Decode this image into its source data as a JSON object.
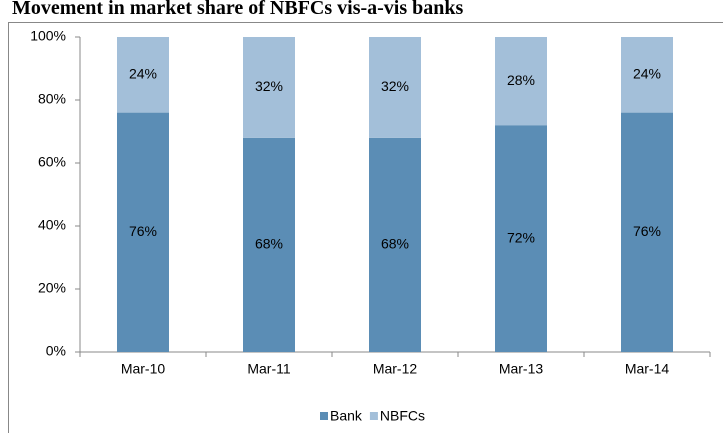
{
  "chart_data": {
    "type": "stacked_bar",
    "title": "Movement in market share of NBFCs vis-a-vis banks",
    "categories": [
      "Mar-10",
      "Mar-11",
      "Mar-12",
      "Mar-13",
      "Mar-14"
    ],
    "series": [
      {
        "name": "Bank",
        "color": "#5b8db5",
        "values": [
          76,
          68,
          68,
          72,
          76
        ],
        "value_labels": [
          "76%",
          "68%",
          "68%",
          "72%",
          "76%"
        ]
      },
      {
        "name": "NBFCs",
        "color": "#a3bfd9",
        "values": [
          24,
          32,
          32,
          28,
          24
        ],
        "value_labels": [
          "24%",
          "32%",
          "32%",
          "28%",
          "24%"
        ]
      }
    ],
    "ylim": [
      0,
      100
    ],
    "yticks": [
      {
        "value": 0,
        "label": "0%"
      },
      {
        "value": 20,
        "label": "20%"
      },
      {
        "value": 40,
        "label": "40%"
      },
      {
        "value": 60,
        "label": "60%"
      },
      {
        "value": 80,
        "label": "80%"
      },
      {
        "value": 100,
        "label": "100%"
      }
    ],
    "legend": "bottom"
  }
}
